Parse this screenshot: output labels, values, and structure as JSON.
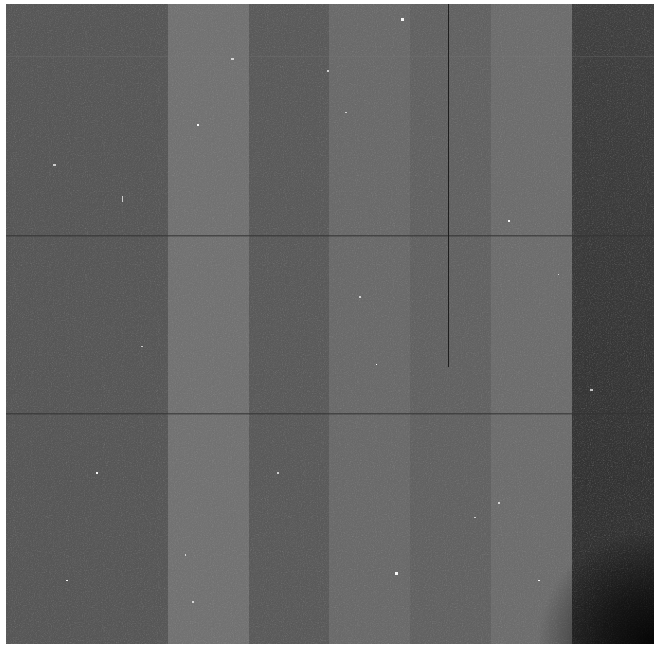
{
  "image": {
    "kind": "grayscale detector frame",
    "palette": {
      "band_dark": "#545454",
      "band_mid": "#5e5e5e",
      "band_light": "#6e6e6e",
      "band_lighter": "#666666",
      "band_edge": "#3a3a3a",
      "line": "#222222",
      "hot_pixel": "#ffffff",
      "border": "#ffffff"
    },
    "column_bands": [
      {
        "name": "band-1",
        "shade": "#575757"
      },
      {
        "name": "band-2",
        "shade": "#727272"
      },
      {
        "name": "band-3",
        "shade": "#5a5a5a"
      },
      {
        "name": "band-4",
        "shade": "#6a6a6a"
      },
      {
        "name": "band-5",
        "shade": "#626262"
      },
      {
        "name": "band-6",
        "shade": "#6d6d6d"
      },
      {
        "name": "band-7",
        "shade": "#3d3d3d"
      }
    ],
    "features": [
      "horizontal-seam-upper",
      "horizontal-seam-lower",
      "vertical-defect-line",
      "hot-pixels",
      "dark-corner-vignette"
    ]
  }
}
